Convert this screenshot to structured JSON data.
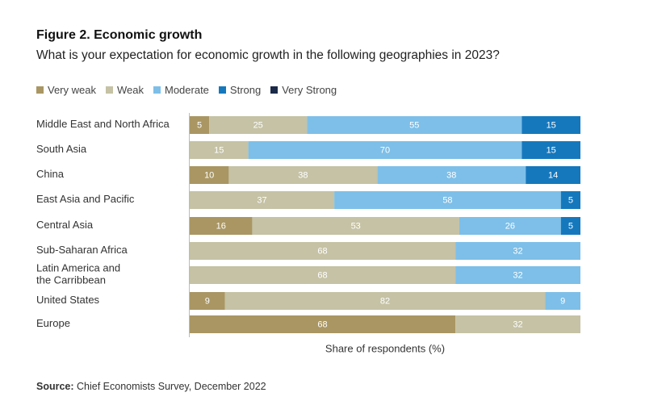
{
  "figure": {
    "title": "Figure 2. Economic growth",
    "subtitle": "What is your expectation for economic growth in the following geographies in 2023?"
  },
  "source": {
    "label": "Source:",
    "text": " Chief Economists Survey, December 2022"
  },
  "colors": {
    "Very weak": "#a99663",
    "Weak": "#c5c2a5",
    "Moderate": "#7dbfe8",
    "Strong": "#1578bd",
    "Very Strong": "#1a2a48"
  },
  "chart_data": {
    "type": "bar",
    "orientation": "horizontal",
    "stacked": true,
    "xlabel": "Share of respondents (%)",
    "xlim": [
      0,
      100
    ],
    "legend_position": "top-left",
    "categories": [
      [
        "Middle East and North Africa"
      ],
      [
        "South Asia"
      ],
      [
        "China"
      ],
      [
        "East Asia and Pacific"
      ],
      [
        "Central Asia"
      ],
      [
        "Sub-Saharan Africa"
      ],
      [
        "Latin America and",
        "the Carribbean"
      ],
      [
        "United States"
      ],
      [
        "Europe"
      ]
    ],
    "series": [
      {
        "name": "Very weak",
        "values": [
          5,
          0,
          10,
          0,
          16,
          0,
          0,
          9,
          68
        ]
      },
      {
        "name": "Weak",
        "values": [
          25,
          15,
          38,
          37,
          53,
          68,
          68,
          82,
          32
        ]
      },
      {
        "name": "Moderate",
        "values": [
          55,
          70,
          38,
          58,
          26,
          32,
          32,
          9,
          0
        ]
      },
      {
        "name": "Strong",
        "values": [
          15,
          15,
          14,
          5,
          5,
          0,
          0,
          0,
          0
        ]
      },
      {
        "name": "Very Strong",
        "values": [
          0,
          0,
          0,
          0,
          0,
          0,
          0,
          0,
          0
        ]
      }
    ]
  }
}
